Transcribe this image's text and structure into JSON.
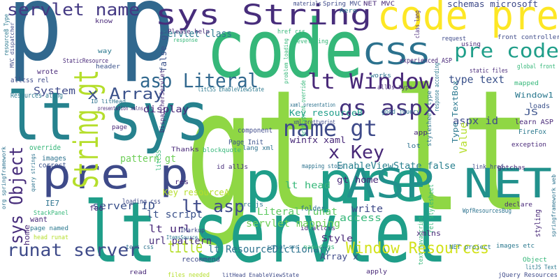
{
  "words": [
    {
      "text": "gt lt",
      "color": "#8fd744"
    },
    {
      "text": "lt servlet",
      "color": "#1f9e89"
    },
    {
      "text": "p p",
      "color": "#31688e"
    },
    {
      "text": "code",
      "color": "#35b779"
    },
    {
      "text": "code pre",
      "color": "#fde725"
    },
    {
      "text": "lt sys",
      "color": "#26828e"
    },
    {
      "text": "p pre",
      "color": "#1f9e89"
    },
    {
      "text": "ASP NET",
      "color": "#21918c"
    },
    {
      "text": "pre p",
      "color": "#3e4a89"
    },
    {
      "text": "sys String",
      "color": "#472d7b"
    },
    {
      "text": "String gt",
      "color": "#b5de2b"
    },
    {
      "text": "CSS",
      "color": "#2c728e"
    },
    {
      "text": "pre code",
      "color": "#1f9e89"
    },
    {
      "text": "lt Window",
      "color": "#482878"
    },
    {
      "text": "gs aspx",
      "color": "#46327e"
    },
    {
      "text": "name gt",
      "color": "#3e4a89"
    },
    {
      "text": "asp Literal",
      "color": "#31688e"
    },
    {
      "text": "x Array",
      "color": "#3b528b"
    },
    {
      "text": "x Key",
      "color": "#482878"
    },
    {
      "text": "sys Object",
      "color": "#472d7b"
    },
    {
      "text": "lt asp",
      "color": "#3e4a89"
    },
    {
      "text": "runat server",
      "color": "#3e4a89"
    },
    {
      "text": "title",
      "color": "#b5de2b"
    },
    {
      "text": "Window Resources",
      "color": "#d2e21b"
    },
    {
      "text": "servlet name",
      "color": "#443983"
    },
    {
      "text": "servlet class",
      "color": "#2a788e"
    },
    {
      "text": "type text",
      "color": "#3b528b"
    },
    {
      "text": "EnableViewState false",
      "color": "#277f8e"
    },
    {
      "text": "servlet mapping",
      "color": "#6ece58"
    },
    {
      "text": "Literal runat",
      "color": "#5ec962"
    },
    {
      "text": "lt script",
      "color": "#3b528b"
    },
    {
      "text": "lt url",
      "color": "#482878"
    },
    {
      "text": "url pattern",
      "color": "#472d7b"
    },
    {
      "text": "lt ResourceDictionary",
      "color": "#2c728e"
    },
    {
      "text": "server ID",
      "color": "#3b528b"
    },
    {
      "text": "Key resourceA",
      "color": "#b5de2b"
    },
    {
      "text": "Key resourceB",
      "color": "#1f9e89"
    },
    {
      "text": "pattern gt",
      "color": "#6ece58"
    },
    {
      "text": "display",
      "color": "#482878"
    },
    {
      "text": "System",
      "color": "#3e4a89"
    },
    {
      "text": "winfx xaml",
      "color": "#482878"
    },
    {
      "text": "gt home",
      "color": "#482878"
    },
    {
      "text": "lt head",
      "color": "#35b779"
    },
    {
      "text": "access",
      "color": "#35b779"
    },
    {
      "text": "write",
      "color": "#3e4a89"
    },
    {
      "text": "Style",
      "color": "#482878"
    },
    {
      "text": "Array x",
      "color": "#3e4a89"
    },
    {
      "text": "aspx id",
      "color": "#3e4a89"
    },
    {
      "text": "JS",
      "color": "#3b528b"
    },
    {
      "text": "Window1",
      "color": "#2a788e"
    },
    {
      "text": "learn ASP",
      "color": "#482878"
    },
    {
      "text": "FireFox",
      "color": "#2a788e"
    },
    {
      "text": "exception",
      "color": "#482878"
    },
    {
      "text": "loads",
      "color": "#3b528b"
    },
    {
      "text": "mapped",
      "color": "#35b779"
    },
    {
      "text": "front controller",
      "color": "#3e4a89"
    },
    {
      "text": "global front",
      "color": "#35b779"
    },
    {
      "text": "static files",
      "color": "#482878"
    },
    {
      "text": "experienced ASP",
      "color": "#482878"
    },
    {
      "text": "Value",
      "color": "#b5de2b"
    },
    {
      "text": "Type TextBox",
      "color": "#2a788e"
    },
    {
      "text": "styling",
      "color": "#482878"
    },
    {
      "text": "NET project",
      "color": "#2a788e"
    },
    {
      "text": "images etc",
      "color": "#2a788e"
    },
    {
      "text": "Object",
      "color": "#35b779"
    },
    {
      "text": "litJS Text",
      "color": "#2a788e"
    },
    {
      "text": "jQuery Resources",
      "color": "#3e4a89"
    },
    {
      "text": "WpfResourcesBug",
      "color": "#2c728e"
    },
    {
      "text": "declare",
      "color": "#482878"
    },
    {
      "text": "gotchas",
      "color": "#482878"
    },
    {
      "text": "link href",
      "color": "#3e4a89"
    },
    {
      "text": "xmlns",
      "color": "#482878"
    },
    {
      "text": "rel stylesheet",
      "color": "#35b779"
    },
    {
      "text": "text javascript",
      "color": "#35b779"
    },
    {
      "text": "component",
      "color": "#3e4a89"
    },
    {
      "text": "Page Init",
      "color": "#3b528b"
    },
    {
      "text": "lang xml",
      "color": "#2c728e"
    },
    {
      "text": "blockquote",
      "color": "#35b779"
    },
    {
      "text": "Thanks",
      "color": "#482878"
    },
    {
      "text": "override",
      "color": "#35b779"
    },
    {
      "text": "images",
      "color": "#2c728e"
    },
    {
      "text": "correct",
      "color": "#3b528b"
    },
    {
      "text": "res",
      "color": "#482878"
    },
    {
      "text": "id allJs",
      "color": "#472d7b"
    },
    {
      "text": "mapping stops",
      "color": "#2c728e"
    },
    {
      "text": "folder",
      "color": "#2c728e"
    },
    {
      "text": "id allcss",
      "color": "#482878"
    },
    {
      "text": "src js",
      "color": "#2c728e"
    },
    {
      "text": "loading css",
      "color": "#3e4a89"
    },
    {
      "text": "IE7",
      "color": "#2c728e"
    },
    {
      "text": "foo",
      "color": "#482878"
    },
    {
      "text": "want",
      "color": "#482878"
    },
    {
      "text": "page named",
      "color": "#2a788e"
    },
    {
      "text": "home",
      "color": "#482878"
    },
    {
      "text": "StackPanel",
      "color": "#35b779"
    },
    {
      "text": "head runat",
      "color": "#b5de2b"
    },
    {
      "text": "text css",
      "color": "#2c728e"
    },
    {
      "text": "recommend",
      "color": "#3e4a89"
    },
    {
      "text": "script src",
      "color": "#2c728e"
    },
    {
      "text": "named gs",
      "color": "#35b779"
    },
    {
      "text": "apply",
      "color": "#482878"
    },
    {
      "text": "read",
      "color": "#482878"
    },
    {
      "text": "files needed",
      "color": "#b5de2b"
    },
    {
      "text": "litHead EnableViewState",
      "color": "#3e4a89"
    },
    {
      "text": "ItemsSource",
      "color": "#2a788e"
    },
    {
      "text": "Resources along",
      "color": "#2a788e"
    },
    {
      "text": "allcss rel",
      "color": "#3e4a89"
    },
    {
      "text": "wrote",
      "color": "#482878"
    },
    {
      "text": "way",
      "color": "#2a788e"
    },
    {
      "text": "header",
      "color": "#3b528b"
    },
    {
      "text": "StaticResource",
      "color": "#482878"
    },
    {
      "text": "know",
      "color": "#482878"
    },
    {
      "text": "Please help",
      "color": "#482878"
    },
    {
      "text": "response",
      "color": "#35b779"
    },
    {
      "text": "false gt",
      "color": "#3b528b"
    },
    {
      "text": "DispatcherServlet",
      "color": "#482878"
    },
    {
      "text": "href css",
      "color": "#35b779"
    },
    {
      "text": "materials",
      "color": "#3e4a89"
    },
    {
      "text": "Spring MVC",
      "color": "#3e4a89"
    },
    {
      "text": "NET MVC",
      "color": "#482878"
    },
    {
      "text": "schemas microsoft",
      "color": "#3e4a89"
    },
    {
      "text": "Aero",
      "color": "#2a788e"
    },
    {
      "text": "developing",
      "color": "#35b779"
    },
    {
      "text": "works",
      "color": "#2c728e"
    },
    {
      "text": "allJs type",
      "color": "#482878"
    },
    {
      "text": "litCSS EnableViewState",
      "color": "#2a788e"
    },
    {
      "text": "xaml presentation",
      "color": "#2c728e"
    },
    {
      "text": "good jQuery",
      "color": "#2c728e"
    },
    {
      "text": "app",
      "color": "#482878"
    },
    {
      "text": "lot",
      "color": "#2c728e"
    },
    {
      "text": "stylesheet type",
      "color": "#2c728e"
    },
    {
      "text": "request",
      "color": "#3e4a89"
    },
    {
      "text": "using",
      "color": "#482878"
    },
    {
      "text": "class lang",
      "color": "#482878"
    },
    {
      "text": "prettyprint override",
      "color": "#35b779"
    },
    {
      "text": "problem loading",
      "color": "#35b779"
    },
    {
      "text": "presentation xmlns",
      "color": "#482878"
    },
    {
      "text": "ID litHead",
      "color": "#2c728e"
    },
    {
      "text": "MVC dispatcher",
      "color": "#3e4a89"
    },
    {
      "text": "resourceB Type",
      "color": "#2a788e"
    },
    {
      "text": "org springframework",
      "color": "#2c728e"
    },
    {
      "text": "springframework web",
      "color": "#2c728e"
    },
    {
      "text": "query strings",
      "color": "#2c728e"
    },
    {
      "text": "response according",
      "color": "#2a788e"
    },
    {
      "text": "page",
      "color": "#482878"
    },
    {
      "text": "litCSS",
      "color": "#35b779"
    },
    {
      "text": "IMarkup",
      "color": "#3e4a89"
    },
    {
      "text": "xml prettyprint",
      "color": "#3e4a89"
    }
  ]
}
